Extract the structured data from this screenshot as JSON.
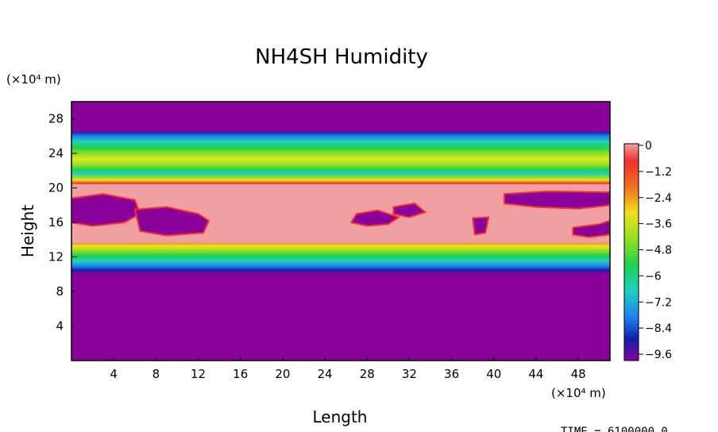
{
  "chart_data": {
    "type": "heatmap",
    "title": "NH4SH Humidity",
    "xlabel": "Length",
    "ylabel": "Height",
    "x_unit": "(×10⁴ m)",
    "y_unit": "(×10⁴ m)",
    "x_ticks": [
      "4",
      "8",
      "12",
      "16",
      "20",
      "24",
      "28",
      "32",
      "36",
      "40",
      "44",
      "48"
    ],
    "y_ticks": [
      "4",
      "8",
      "12",
      "16",
      "20",
      "24",
      "28"
    ],
    "xlim": [
      0,
      51
    ],
    "ylim": [
      0,
      30
    ],
    "colorbar": {
      "range": [
        -10,
        0
      ],
      "tick_labels": [
        "0",
        "−1.2",
        "−2.4",
        "−3.6",
        "−4.8",
        "−6",
        "−7.2",
        "−8.4",
        "−9.6"
      ],
      "colors": [
        "#f0a0a0",
        "#f03030",
        "#f07020",
        "#f0e020",
        "#90e020",
        "#20d050",
        "#20d0c0",
        "#2080f0",
        "#1020b0",
        "#8a009a"
      ]
    },
    "bands": [
      {
        "y_range": [
          0,
          10.3
        ],
        "value": -10
      },
      {
        "y_range": [
          10.3,
          12.5
        ],
        "value": -7.5
      },
      {
        "y_range": [
          12.5,
          14
        ],
        "value": -4.5
      },
      {
        "y_range": [
          14,
          20.3
        ],
        "value": 0
      },
      {
        "y_range": [
          20.3,
          21
        ],
        "value": -1.5
      },
      {
        "y_range": [
          21,
          26
        ],
        "value": -4.8
      },
      {
        "y_range": [
          26,
          30
        ],
        "value": -10
      }
    ],
    "footer": "TIME = 6100000.0"
  }
}
